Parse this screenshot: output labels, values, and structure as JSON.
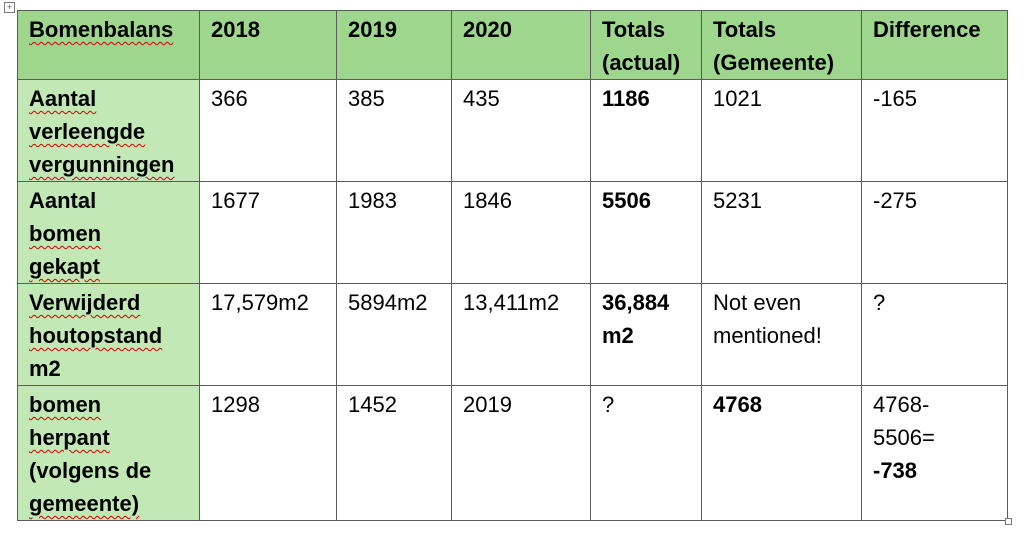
{
  "table": {
    "headers": [
      "Bomenbalans",
      "2018",
      "2019",
      "2020",
      "Totals (actual)",
      "Totals (Gemeente)",
      "Difference"
    ],
    "rows": [
      {
        "label": "Aantal verleengde vergunningen",
        "label_lines": [
          "Aantal",
          "verleengde",
          "vergunningen"
        ],
        "y2018": "366",
        "y2019": "385",
        "y2020": "435",
        "totals_actual": "1186",
        "totals_gemeente": "1021",
        "difference": "-165"
      },
      {
        "label": "Aantal bomen gekapt",
        "label_lines": [
          "Aantal",
          "bomen",
          "gekapt"
        ],
        "y2018": "1677",
        "y2019": "1983",
        "y2020": "1846",
        "totals_actual": "5506",
        "totals_gemeente": "5231",
        "difference": "-275"
      },
      {
        "label": "Verwijderd houtopstand m2",
        "label_lines": [
          "Verwijderd",
          "houtopstand",
          "m2"
        ],
        "y2018": "17,579m2",
        "y2019": "5894m2",
        "y2020": "13,411m2",
        "totals_actual_lines": [
          "36,884",
          "m2"
        ],
        "totals_gemeente_lines": [
          "Not even",
          "mentioned!"
        ],
        "difference": "?"
      },
      {
        "label": "bomen herpant (volgens de gemeente)",
        "label_lines": [
          "bomen",
          "herpant",
          "(volgens de",
          "gemeente)"
        ],
        "y2018": "1298",
        "y2019": "1452",
        "y2020": "2019",
        "totals_actual": "?",
        "totals_gemeente": "4768",
        "difference_lines": [
          "4768-",
          "5506=",
          "-738"
        ]
      }
    ]
  }
}
